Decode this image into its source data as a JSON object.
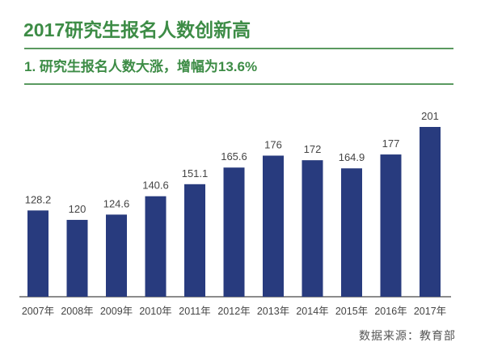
{
  "chart_data": {
    "type": "bar",
    "title": "2017研究生报名人数创新高",
    "subtitle": "1. 研究生报名人数大涨，增幅为13.6%",
    "categories": [
      "2007年",
      "2008年",
      "2009年",
      "2010年",
      "2011年",
      "2012年",
      "2013年",
      "2014年",
      "2015年",
      "2016年",
      "2017年"
    ],
    "values": [
      128.2,
      120,
      124.6,
      140.6,
      151.1,
      165.6,
      176,
      172,
      164.9,
      177,
      201
    ],
    "value_labels": [
      "128.2",
      "120",
      "124.6",
      "140.6",
      "151.1",
      "165.6",
      "176",
      "172",
      "164.9",
      "177",
      "201"
    ],
    "xlabel": "",
    "ylabel": "",
    "ylim": [
      53,
      201
    ],
    "grid": false,
    "bar_color": "#283b7e",
    "source": "数据来源：教育部"
  }
}
